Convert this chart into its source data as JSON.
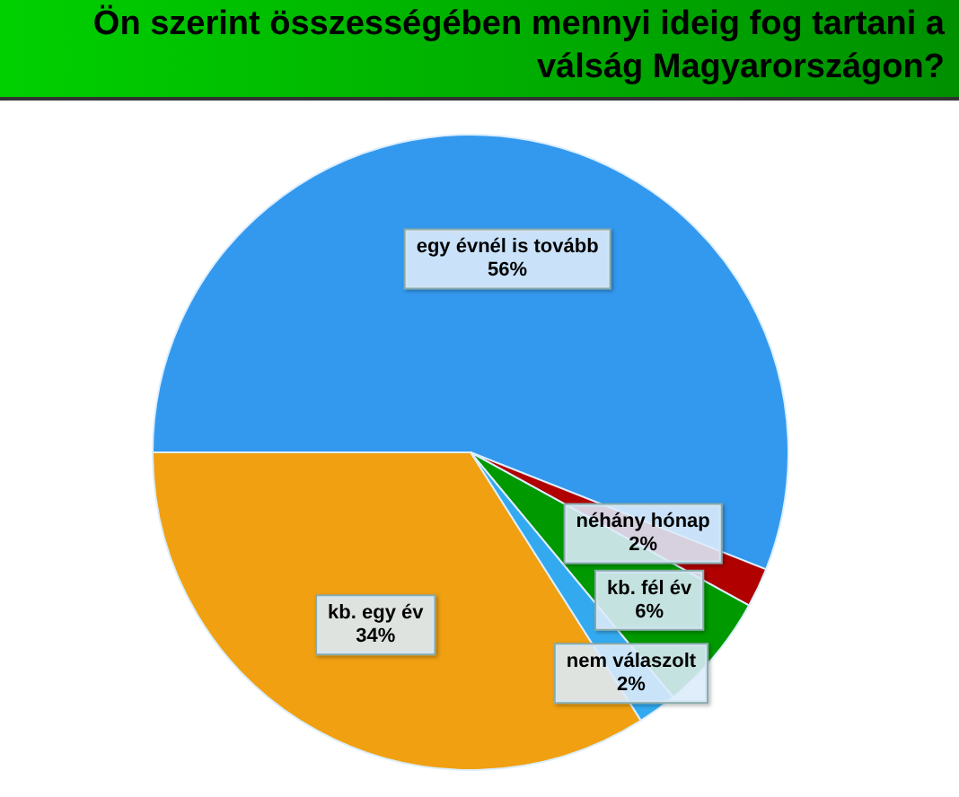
{
  "chart_data": {
    "type": "pie",
    "title": "Ön szerint összességében mennyi ideig fog tartani a válság Magyarországon?",
    "categories": [
      "egy évnél is tovább",
      "néhány hónap",
      "kb. fél év",
      "nem válaszolt",
      "kb. egy év"
    ],
    "values": [
      56,
      2,
      6,
      2,
      34
    ],
    "colors": [
      "#3399ee",
      "#b00000",
      "#009900",
      "#33aaf0",
      "#f0a010"
    ],
    "value_labels": [
      "56%",
      "2%",
      "6%",
      "2%",
      "34%"
    ],
    "legend": false
  }
}
